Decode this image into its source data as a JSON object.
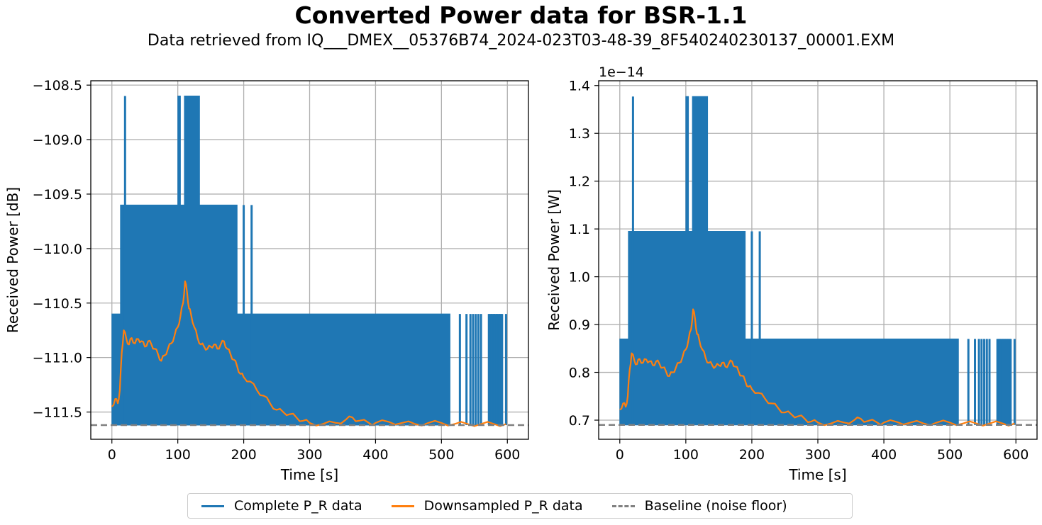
{
  "figure": {
    "title": "Converted Power data for BSR-1.1",
    "subtitle": "Data retrieved from IQ___DMEX__05376B74_2024-023T03-48-39_8F540240230137_00001.EXM"
  },
  "legend": {
    "placement": "bottom-center",
    "items": [
      {
        "label": "Complete P_R data",
        "color": "#1f77b4",
        "style": "solid"
      },
      {
        "label": "Downsampled P_R data",
        "color": "#ff7f0e",
        "style": "solid"
      },
      {
        "label": "Baseline (noise floor)",
        "color": "#808080",
        "style": "dashed"
      }
    ]
  },
  "chart_data": [
    {
      "type": "line",
      "xlabel": "Time [s]",
      "ylabel": "Received Power [dB]",
      "offset_text": "",
      "xlim": [
        -32,
        632
      ],
      "ylim": [
        -111.75,
        -108.46
      ],
      "xticks": [
        0,
        100,
        200,
        300,
        400,
        500,
        600
      ],
      "xtick_labels": [
        "0",
        "100",
        "200",
        "300",
        "400",
        "500",
        "600"
      ],
      "yticks": [
        -108.5,
        -109.0,
        -109.5,
        -110.0,
        -110.5,
        -111.0,
        -111.5
      ],
      "ytick_labels": [
        "−108.5",
        "−109.0",
        "−109.5",
        "−110.0",
        "−110.5",
        "−111.0",
        "−111.5"
      ],
      "grid": true,
      "series": [
        {
          "name": "Complete P_R data",
          "color": "#1f77b4",
          "render": "band",
          "x_start": 0,
          "x_end": 598,
          "floor": -111.62,
          "envelope": [
            [
              0,
              -110.6
            ],
            [
              13,
              -110.6
            ],
            [
              13,
              -109.6
            ],
            [
              100,
              -109.6
            ],
            [
              100,
              -108.6
            ],
            [
              104,
              -108.6
            ],
            [
              104,
              -109.6
            ],
            [
              110,
              -109.6
            ],
            [
              110,
              -108.6
            ],
            [
              133,
              -108.6
            ],
            [
              133,
              -109.6
            ],
            [
              190,
              -109.6
            ],
            [
              190,
              -110.6
            ],
            [
              513,
              -110.6
            ]
          ],
          "spikes": [
            {
              "x": 20,
              "top": -108.6
            },
            {
              "x": 200,
              "top": -109.6
            },
            {
              "x": 212,
              "top": -109.6
            },
            {
              "x": 528,
              "top": -110.6
            },
            {
              "x": 538,
              "top": -110.6
            },
            {
              "x": 544,
              "top": -110.6
            },
            {
              "x": 548,
              "top": -110.6
            },
            {
              "x": 552,
              "top": -110.6
            },
            {
              "x": 556,
              "top": -110.6
            },
            {
              "x": 560,
              "top": -110.6
            },
            {
              "x": 572,
              "top": -110.6
            },
            {
              "x": 576,
              "top": -110.6
            },
            {
              "x": 580,
              "top": -110.6
            },
            {
              "x": 584,
              "top": -110.6
            },
            {
              "x": 588,
              "top": -110.6
            },
            {
              "x": 592,
              "top": -110.6
            },
            {
              "x": 598,
              "top": -110.6
            }
          ],
          "fill_from": [
            [
              572,
              592
            ]
          ]
        },
        {
          "name": "Downsampled P_R data",
          "color": "#ff7f0e",
          "render": "line",
          "points": [
            [
              0,
              -111.45
            ],
            [
              5,
              -111.38
            ],
            [
              9,
              -111.42
            ],
            [
              12,
              -111.3
            ],
            [
              15,
              -110.95
            ],
            [
              18,
              -110.75
            ],
            [
              22,
              -110.83
            ],
            [
              26,
              -110.88
            ],
            [
              30,
              -110.82
            ],
            [
              35,
              -110.87
            ],
            [
              40,
              -110.83
            ],
            [
              45,
              -110.85
            ],
            [
              50,
              -110.9
            ],
            [
              55,
              -110.85
            ],
            [
              60,
              -110.88
            ],
            [
              65,
              -110.92
            ],
            [
              70,
              -110.97
            ],
            [
              75,
              -111.03
            ],
            [
              80,
              -110.98
            ],
            [
              85,
              -110.92
            ],
            [
              90,
              -110.87
            ],
            [
              95,
              -110.8
            ],
            [
              100,
              -110.72
            ],
            [
              104,
              -110.62
            ],
            [
              108,
              -110.5
            ],
            [
              111,
              -110.3
            ],
            [
              114,
              -110.4
            ],
            [
              117,
              -110.55
            ],
            [
              120,
              -110.6
            ],
            [
              125,
              -110.72
            ],
            [
              130,
              -110.82
            ],
            [
              135,
              -110.88
            ],
            [
              140,
              -110.9
            ],
            [
              145,
              -110.92
            ],
            [
              150,
              -110.9
            ],
            [
              155,
              -110.88
            ],
            [
              160,
              -110.92
            ],
            [
              165,
              -110.88
            ],
            [
              170,
              -110.85
            ],
            [
              175,
              -110.92
            ],
            [
              180,
              -110.97
            ],
            [
              185,
              -111.02
            ],
            [
              190,
              -111.08
            ],
            [
              195,
              -111.15
            ],
            [
              200,
              -111.18
            ],
            [
              210,
              -111.22
            ],
            [
              220,
              -111.3
            ],
            [
              230,
              -111.35
            ],
            [
              240,
              -111.42
            ],
            [
              250,
              -111.48
            ],
            [
              260,
              -111.5
            ],
            [
              270,
              -111.52
            ],
            [
              280,
              -111.55
            ],
            [
              290,
              -111.58
            ],
            [
              300,
              -111.6
            ],
            [
              320,
              -111.61
            ],
            [
              340,
              -111.6
            ],
            [
              355,
              -111.57
            ],
            [
              365,
              -111.55
            ],
            [
              375,
              -111.58
            ],
            [
              390,
              -111.6
            ],
            [
              400,
              -111.6
            ],
            [
              420,
              -111.59
            ],
            [
              440,
              -111.6
            ],
            [
              460,
              -111.61
            ],
            [
              480,
              -111.6
            ],
            [
              500,
              -111.6
            ],
            [
              520,
              -111.61
            ],
            [
              540,
              -111.61
            ],
            [
              560,
              -111.61
            ],
            [
              580,
              -111.61
            ],
            [
              598,
              -111.61
            ]
          ]
        },
        {
          "name": "Baseline (noise floor)",
          "color": "#808080",
          "render": "hline",
          "y": -111.62
        }
      ]
    },
    {
      "type": "line",
      "xlabel": "Time [s]",
      "ylabel": "Received Power [W]",
      "offset_text": "1e−14",
      "xlim": [
        -32,
        632
      ],
      "ylim": [
        0.66,
        1.41
      ],
      "xticks": [
        0,
        100,
        200,
        300,
        400,
        500,
        600
      ],
      "xtick_labels": [
        "0",
        "100",
        "200",
        "300",
        "400",
        "500",
        "600"
      ],
      "yticks": [
        0.7,
        0.8,
        0.9,
        1.0,
        1.1,
        1.2,
        1.3,
        1.4
      ],
      "ytick_labels": [
        "0.7",
        "0.8",
        "0.9",
        "1.0",
        "1.1",
        "1.2",
        "1.3",
        "1.4"
      ],
      "grid": true,
      "series": [
        {
          "name": "Complete P_R data",
          "color": "#1f77b4",
          "render": "band",
          "x_start": 0,
          "x_end": 598,
          "floor": 0.69,
          "envelope": [
            [
              0,
              0.87
            ],
            [
              13,
              0.87
            ],
            [
              13,
              1.095
            ],
            [
              100,
              1.095
            ],
            [
              100,
              1.377
            ],
            [
              104,
              1.377
            ],
            [
              104,
              1.095
            ],
            [
              110,
              1.095
            ],
            [
              110,
              1.377
            ],
            [
              133,
              1.377
            ],
            [
              133,
              1.095
            ],
            [
              190,
              1.095
            ],
            [
              190,
              0.87
            ],
            [
              513,
              0.87
            ]
          ],
          "spikes": [
            {
              "x": 20,
              "top": 1.377
            },
            {
              "x": 200,
              "top": 1.095
            },
            {
              "x": 212,
              "top": 1.095
            },
            {
              "x": 528,
              "top": 0.87
            },
            {
              "x": 538,
              "top": 0.87
            },
            {
              "x": 544,
              "top": 0.87
            },
            {
              "x": 548,
              "top": 0.87
            },
            {
              "x": 552,
              "top": 0.87
            },
            {
              "x": 556,
              "top": 0.87
            },
            {
              "x": 560,
              "top": 0.87
            },
            {
              "x": 572,
              "top": 0.87
            },
            {
              "x": 576,
              "top": 0.87
            },
            {
              "x": 580,
              "top": 0.87
            },
            {
              "x": 584,
              "top": 0.87
            },
            {
              "x": 588,
              "top": 0.87
            },
            {
              "x": 592,
              "top": 0.87
            },
            {
              "x": 598,
              "top": 0.87
            }
          ],
          "fill_from": [
            [
              572,
              592
            ]
          ]
        },
        {
          "name": "Downsampled P_R data",
          "color": "#ff7f0e",
          "render": "line",
          "points": [
            [
              0,
              0.722
            ],
            [
              5,
              0.735
            ],
            [
              9,
              0.728
            ],
            [
              12,
              0.75
            ],
            [
              15,
              0.805
            ],
            [
              18,
              0.84
            ],
            [
              22,
              0.825
            ],
            [
              26,
              0.817
            ],
            [
              30,
              0.828
            ],
            [
              35,
              0.82
            ],
            [
              40,
              0.827
            ],
            [
              45,
              0.823
            ],
            [
              50,
              0.815
            ],
            [
              55,
              0.823
            ],
            [
              60,
              0.818
            ],
            [
              65,
              0.81
            ],
            [
              70,
              0.802
            ],
            [
              75,
              0.792
            ],
            [
              80,
              0.8
            ],
            [
              85,
              0.81
            ],
            [
              90,
              0.82
            ],
            [
              95,
              0.832
            ],
            [
              100,
              0.848
            ],
            [
              104,
              0.868
            ],
            [
              108,
              0.89
            ],
            [
              111,
              0.932
            ],
            [
              114,
              0.912
            ],
            [
              117,
              0.88
            ],
            [
              120,
              0.87
            ],
            [
              125,
              0.848
            ],
            [
              130,
              0.83
            ],
            [
              135,
              0.82
            ],
            [
              140,
              0.815
            ],
            [
              145,
              0.812
            ],
            [
              150,
              0.815
            ],
            [
              155,
              0.82
            ],
            [
              160,
              0.812
            ],
            [
              165,
              0.818
            ],
            [
              170,
              0.823
            ],
            [
              175,
              0.812
            ],
            [
              180,
              0.802
            ],
            [
              185,
              0.793
            ],
            [
              190,
              0.782
            ],
            [
              195,
              0.77
            ],
            [
              200,
              0.765
            ],
            [
              210,
              0.757
            ],
            [
              220,
              0.745
            ],
            [
              230,
              0.735
            ],
            [
              240,
              0.725
            ],
            [
              250,
              0.716
            ],
            [
              260,
              0.712
            ],
            [
              270,
              0.708
            ],
            [
              280,
              0.703
            ],
            [
              290,
              0.697
            ],
            [
              300,
              0.695
            ],
            [
              320,
              0.693
            ],
            [
              340,
              0.695
            ],
            [
              355,
              0.7
            ],
            [
              365,
              0.703
            ],
            [
              375,
              0.698
            ],
            [
              390,
              0.695
            ],
            [
              400,
              0.695
            ],
            [
              420,
              0.696
            ],
            [
              440,
              0.695
            ],
            [
              460,
              0.693
            ],
            [
              480,
              0.695
            ],
            [
              500,
              0.695
            ],
            [
              520,
              0.693
            ],
            [
              540,
              0.693
            ],
            [
              560,
              0.693
            ],
            [
              580,
              0.693
            ],
            [
              598,
              0.693
            ]
          ]
        },
        {
          "name": "Baseline (noise floor)",
          "color": "#808080",
          "render": "hline",
          "y": 0.69
        }
      ]
    }
  ]
}
